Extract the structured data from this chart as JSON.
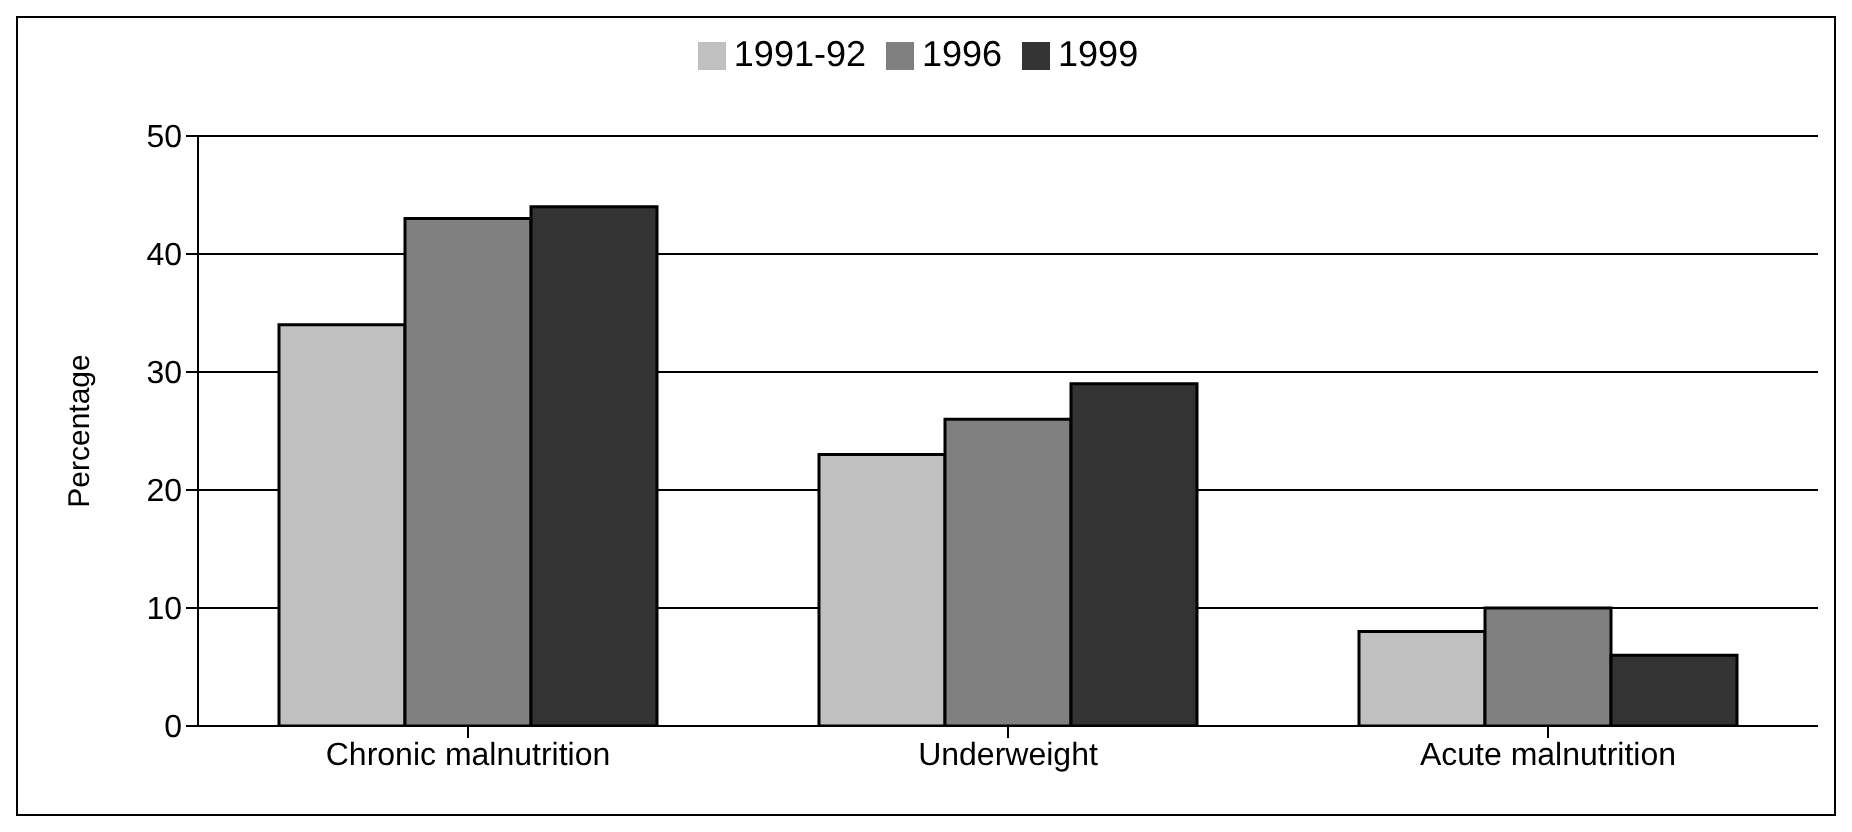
{
  "chart_data": {
    "type": "bar",
    "ylabel": "Percentage",
    "categories": [
      "Chronic malnutrition",
      "Underweight",
      "Acute malnutrition"
    ],
    "series": [
      {
        "name": "1991-92",
        "color": "#c0c0c0",
        "values": [
          34,
          23,
          8
        ]
      },
      {
        "name": "1996",
        "color": "#808080",
        "values": [
          43,
          26,
          10
        ]
      },
      {
        "name": "1999",
        "color": "#333333",
        "values": [
          44,
          29,
          6
        ]
      }
    ],
    "ylim": [
      0,
      50
    ],
    "yticks": [
      0,
      10,
      20,
      30,
      40,
      50
    ],
    "grid": "y",
    "legend": "top"
  }
}
